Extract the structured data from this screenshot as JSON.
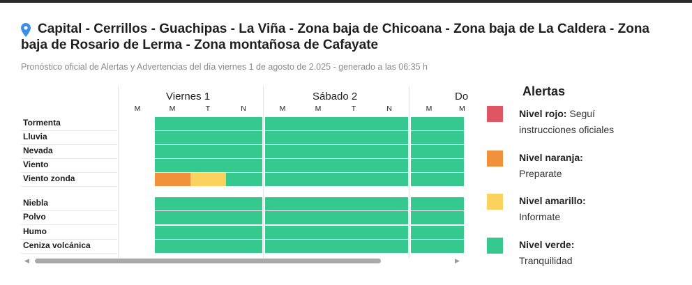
{
  "header": {
    "title_line1": "Capital - Cerrillos - Guachipas - La Viña - Zona baja de Chicoana - Zona baja de La Caldera - Zona",
    "title_line2": "baja de Rosario de Lerma - Zona montañosa de Cafayate",
    "subtitle": "Pronóstico oficial de Alertas y Advertencias del día viernes 1 de agosto de 2.025 - generado a las 06:35 h",
    "icon": "location-pin-icon"
  },
  "grid": {
    "days": [
      {
        "label": "Viernes 1",
        "slots": [
          "M",
          "M",
          "T",
          "N"
        ]
      },
      {
        "label": "Sábado 2",
        "slots": [
          "M",
          "M",
          "T",
          "N"
        ]
      },
      {
        "label": "Do",
        "slots": [
          "M",
          "M"
        ]
      }
    ],
    "rows": [
      "Tormenta",
      "Lluvia",
      "Nevada",
      "Viento",
      "Viento zonda",
      "Niebla",
      "Polvo",
      "Humo",
      "Ceniza volcánica"
    ],
    "viento_zonda_levels": [
      "naranja",
      "amarillo",
      "verde"
    ],
    "default_level": "verde"
  },
  "legend": {
    "title": "Alertas",
    "items": [
      {
        "name": "Nivel rojo:",
        "desc_inline": " Seguí",
        "desc": "instrucciones oficiales",
        "color": "#e05564"
      },
      {
        "name": "Nivel naranja:",
        "desc": "Preparate",
        "color": "#f1913b"
      },
      {
        "name": "Nivel amarillo:",
        "desc": "Informate",
        "color": "#fbd25e"
      },
      {
        "name": "Nivel verde:",
        "desc": "Tranquilidad",
        "color": "#35c98f"
      }
    ]
  },
  "colors": {
    "verde": "#35c98f",
    "naranja": "#f1913b",
    "amarillo": "#fbd25e"
  }
}
